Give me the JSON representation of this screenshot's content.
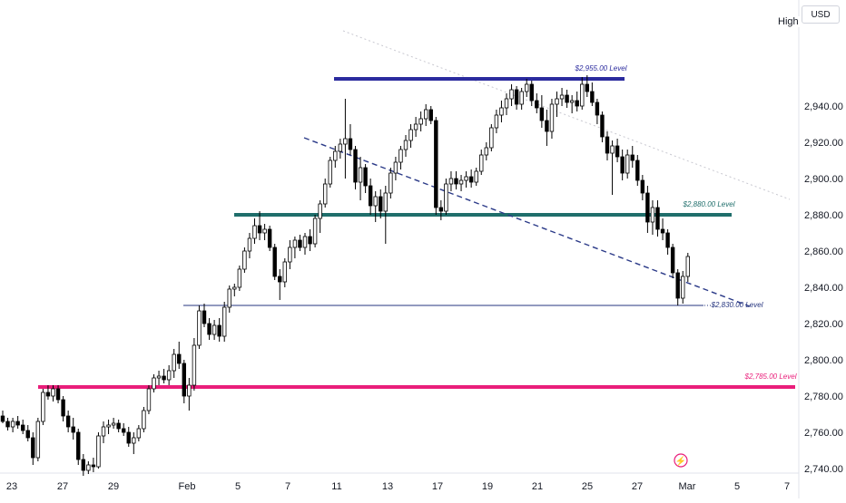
{
  "currency_button": "USD",
  "price_scale_tag": "High",
  "colors": {
    "bull": "#ffffff",
    "bear": "#000000",
    "wick": "#000000",
    "level_2955": "#2b2b9e",
    "level_2880": "#1f6e6b",
    "level_2830": "#26357f",
    "level_2785": "#e91e7a",
    "trend_dashed": "#2b3a88",
    "trend_dotted": "#c8c8d0",
    "axis_text": "#131722"
  },
  "chart_data": {
    "type": "candlestick",
    "y_axis_ticks": [
      "2,740.00",
      "2,760.00",
      "2,780.00",
      "2,800.00",
      "2,820.00",
      "2,840.00",
      "2,860.00",
      "2,880.00",
      "2,900.00",
      "2,920.00",
      "2,940.00"
    ],
    "ylim": [
      2738,
      2962
    ],
    "x_axis_ticks": [
      "23",
      "27",
      "29",
      "Feb",
      "5",
      "7",
      "11",
      "13",
      "17",
      "19",
      "21",
      "25",
      "27",
      "Mar",
      "5",
      "7"
    ],
    "horizontal_levels": [
      {
        "label": "$2,955.00 Level",
        "value": 2955
      },
      {
        "label": "$2,880.00 Level",
        "value": 2880
      },
      {
        "label": "$2,830.00 Level",
        "value": 2830
      },
      {
        "label": "$2,785.00 Level",
        "value": 2785
      }
    ],
    "candles": [
      [
        2769,
        2772,
        2765,
        2766
      ],
      [
        2766,
        2768,
        2761,
        2763
      ],
      [
        2763,
        2768,
        2760,
        2766
      ],
      [
        2766,
        2769,
        2762,
        2764
      ],
      [
        2764,
        2767,
        2759,
        2761
      ],
      [
        2761,
        2764,
        2755,
        2757
      ],
      [
        2757,
        2760,
        2742,
        2746
      ],
      [
        2746,
        2768,
        2744,
        2766
      ],
      [
        2766,
        2784,
        2764,
        2782
      ],
      [
        2782,
        2786,
        2778,
        2780
      ],
      [
        2780,
        2786,
        2777,
        2784
      ],
      [
        2784,
        2786,
        2776,
        2778
      ],
      [
        2778,
        2780,
        2766,
        2769
      ],
      [
        2769,
        2772,
        2760,
        2763
      ],
      [
        2763,
        2768,
        2756,
        2760
      ],
      [
        2760,
        2762,
        2742,
        2745
      ],
      [
        2745,
        2748,
        2736,
        2739
      ],
      [
        2739,
        2744,
        2737,
        2742
      ],
      [
        2742,
        2746,
        2738,
        2741
      ],
      [
        2741,
        2760,
        2740,
        2758
      ],
      [
        2758,
        2766,
        2754,
        2763
      ],
      [
        2763,
        2767,
        2759,
        2764
      ],
      [
        2764,
        2768,
        2762,
        2765
      ],
      [
        2765,
        2767,
        2760,
        2762
      ],
      [
        2762,
        2765,
        2758,
        2760
      ],
      [
        2760,
        2763,
        2752,
        2754
      ],
      [
        2754,
        2760,
        2748,
        2757
      ],
      [
        2757,
        2764,
        2755,
        2762
      ],
      [
        2762,
        2774,
        2760,
        2772
      ],
      [
        2772,
        2786,
        2770,
        2784
      ],
      [
        2784,
        2792,
        2782,
        2790
      ],
      [
        2790,
        2794,
        2786,
        2791
      ],
      [
        2791,
        2795,
        2787,
        2789
      ],
      [
        2789,
        2797,
        2786,
        2794
      ],
      [
        2794,
        2806,
        2790,
        2803
      ],
      [
        2803,
        2810,
        2795,
        2798
      ],
      [
        2798,
        2800,
        2776,
        2780
      ],
      [
        2780,
        2790,
        2772,
        2786
      ],
      [
        2786,
        2812,
        2783,
        2808
      ],
      [
        2808,
        2830,
        2806,
        2827
      ],
      [
        2827,
        2831,
        2818,
        2820
      ],
      [
        2820,
        2823,
        2811,
        2814
      ],
      [
        2814,
        2822,
        2811,
        2819
      ],
      [
        2819,
        2823,
        2810,
        2813
      ],
      [
        2813,
        2832,
        2810,
        2829
      ],
      [
        2829,
        2841,
        2826,
        2839
      ],
      [
        2839,
        2842,
        2835,
        2840
      ],
      [
        2840,
        2852,
        2838,
        2850
      ],
      [
        2850,
        2862,
        2848,
        2860
      ],
      [
        2860,
        2870,
        2856,
        2867
      ],
      [
        2867,
        2878,
        2864,
        2874
      ],
      [
        2874,
        2882,
        2866,
        2870
      ],
      [
        2870,
        2875,
        2866,
        2872
      ],
      [
        2872,
        2874,
        2860,
        2862
      ],
      [
        2862,
        2864,
        2844,
        2846
      ],
      [
        2846,
        2850,
        2833,
        2843
      ],
      [
        2843,
        2856,
        2840,
        2854
      ],
      [
        2854,
        2866,
        2850,
        2862
      ],
      [
        2862,
        2868,
        2856,
        2866
      ],
      [
        2866,
        2869,
        2860,
        2862
      ],
      [
        2862,
        2870,
        2858,
        2868
      ],
      [
        2868,
        2872,
        2860,
        2864
      ],
      [
        2864,
        2880,
        2862,
        2878
      ],
      [
        2878,
        2888,
        2870,
        2886
      ],
      [
        2886,
        2900,
        2884,
        2897
      ],
      [
        2897,
        2912,
        2895,
        2910
      ],
      [
        2910,
        2918,
        2906,
        2915
      ],
      [
        2915,
        2922,
        2911,
        2919
      ],
      [
        2919,
        2944,
        2900,
        2922
      ],
      [
        2922,
        2930,
        2913,
        2916
      ],
      [
        2916,
        2918,
        2894,
        2898
      ],
      [
        2898,
        2912,
        2888,
        2906
      ],
      [
        2906,
        2908,
        2892,
        2896
      ],
      [
        2896,
        2900,
        2880,
        2885
      ],
      [
        2885,
        2893,
        2876,
        2890
      ],
      [
        2890,
        2894,
        2878,
        2882
      ],
      [
        2882,
        2896,
        2864,
        2892
      ],
      [
        2892,
        2906,
        2889,
        2903
      ],
      [
        2903,
        2912,
        2899,
        2909
      ],
      [
        2909,
        2918,
        2905,
        2916
      ],
      [
        2916,
        2924,
        2912,
        2921
      ],
      [
        2921,
        2930,
        2917,
        2927
      ],
      [
        2927,
        2934,
        2923,
        2930
      ],
      [
        2930,
        2937,
        2926,
        2933
      ],
      [
        2933,
        2941,
        2929,
        2938
      ],
      [
        2938,
        2940,
        2930,
        2932
      ],
      [
        2932,
        2934,
        2880,
        2884
      ],
      [
        2884,
        2888,
        2877,
        2882
      ],
      [
        2882,
        2900,
        2880,
        2897
      ],
      [
        2897,
        2904,
        2893,
        2900
      ],
      [
        2900,
        2904,
        2894,
        2897
      ],
      [
        2897,
        2902,
        2893,
        2899
      ],
      [
        2899,
        2904,
        2895,
        2901
      ],
      [
        2901,
        2905,
        2895,
        2898
      ],
      [
        2898,
        2906,
        2896,
        2904
      ],
      [
        2904,
        2916,
        2902,
        2913
      ],
      [
        2913,
        2920,
        2910,
        2917
      ],
      [
        2917,
        2930,
        2915,
        2928
      ],
      [
        2928,
        2938,
        2925,
        2935
      ],
      [
        2935,
        2943,
        2931,
        2939
      ],
      [
        2939,
        2947,
        2935,
        2944
      ],
      [
        2944,
        2952,
        2940,
        2949
      ],
      [
        2949,
        2951,
        2938,
        2941
      ],
      [
        2941,
        2950,
        2938,
        2948
      ],
      [
        2948,
        2955,
        2945,
        2952
      ],
      [
        2952,
        2954,
        2940,
        2943
      ],
      [
        2943,
        2947,
        2936,
        2939
      ],
      [
        2939,
        2946,
        2928,
        2932
      ],
      [
        2932,
        2938,
        2918,
        2926
      ],
      [
        2926,
        2944,
        2922,
        2941
      ],
      [
        2941,
        2948,
        2934,
        2944
      ],
      [
        2944,
        2950,
        2940,
        2946
      ],
      [
        2946,
        2949,
        2939,
        2942
      ],
      [
        2942,
        2946,
        2936,
        2943
      ],
      [
        2943,
        2948,
        2937,
        2940
      ],
      [
        2940,
        2956,
        2938,
        2952
      ],
      [
        2952,
        2957,
        2945,
        2948
      ],
      [
        2948,
        2953,
        2940,
        2942
      ],
      [
        2942,
        2944,
        2930,
        2935
      ],
      [
        2935,
        2937,
        2920,
        2923
      ],
      [
        2923,
        2926,
        2910,
        2914
      ],
      [
        2914,
        2921,
        2891,
        2918
      ],
      [
        2918,
        2922,
        2909,
        2912
      ],
      [
        2912,
        2916,
        2899,
        2903
      ],
      [
        2903,
        2916,
        2900,
        2913
      ],
      [
        2913,
        2918,
        2906,
        2910
      ],
      [
        2910,
        2913,
        2896,
        2899
      ],
      [
        2899,
        2902,
        2888,
        2892
      ],
      [
        2892,
        2896,
        2870,
        2876
      ],
      [
        2876,
        2888,
        2869,
        2884
      ],
      [
        2884,
        2888,
        2868,
        2872
      ],
      [
        2872,
        2878,
        2866,
        2870
      ],
      [
        2870,
        2872,
        2858,
        2862
      ],
      [
        2862,
        2864,
        2845,
        2848
      ],
      [
        2848,
        2850,
        2830,
        2834
      ],
      [
        2834,
        2849,
        2831,
        2846
      ],
      [
        2846,
        2859,
        2843,
        2857
      ]
    ]
  }
}
